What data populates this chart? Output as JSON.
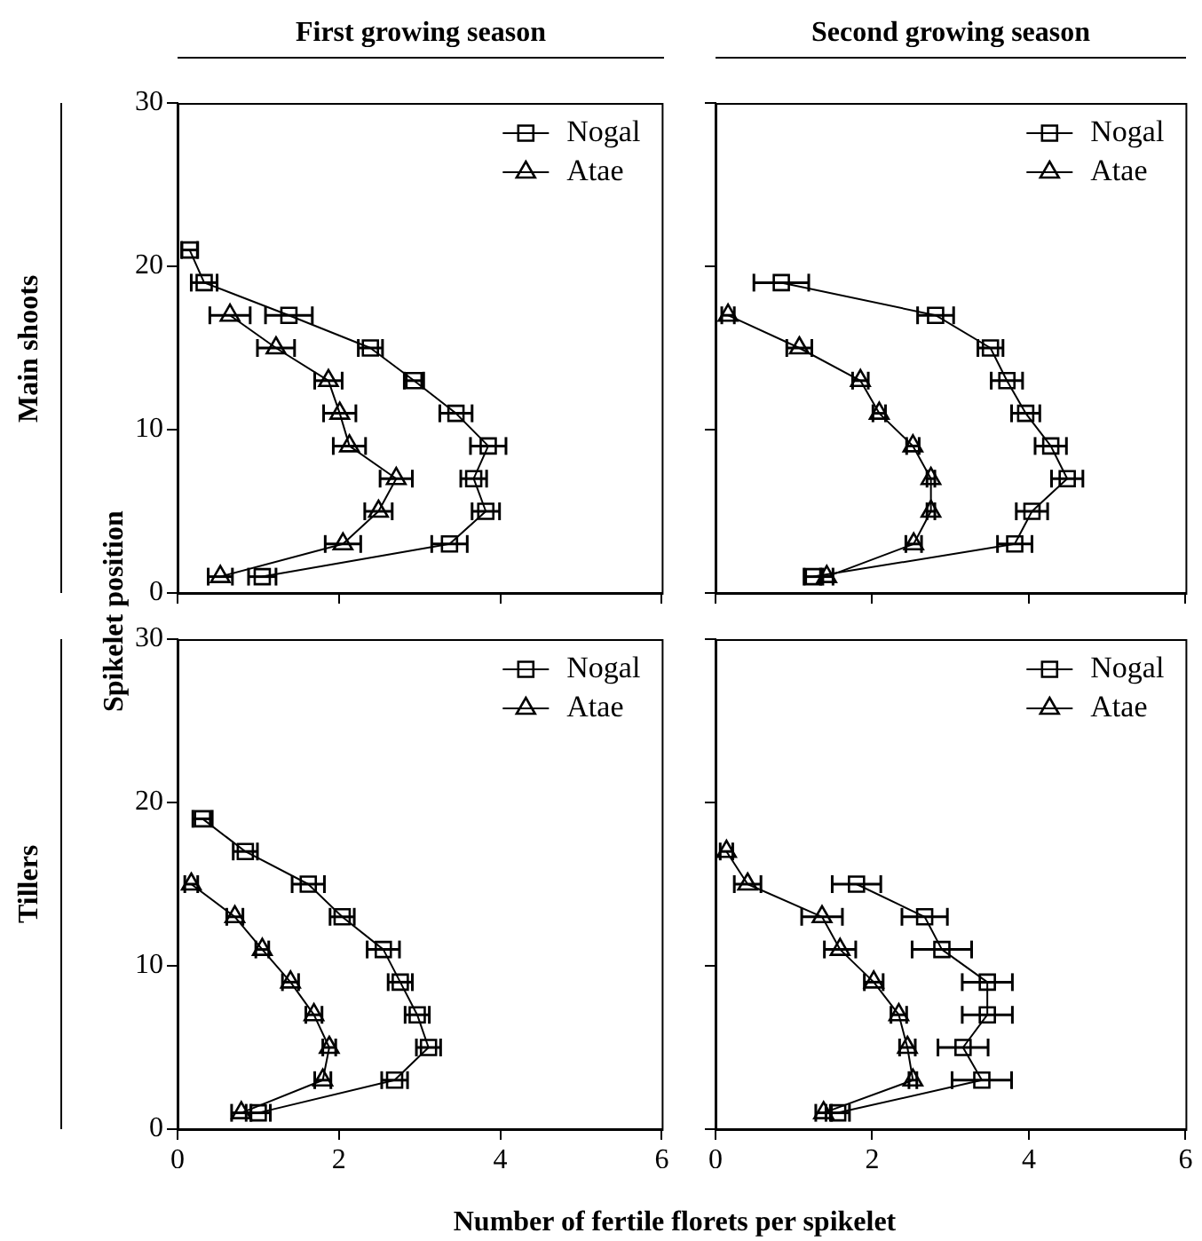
{
  "chart_data": [
    {
      "type": "line",
      "title": "First growing season",
      "ylabel": "Spikelet position",
      "annotations": [
        "Main shoots"
      ],
      "xlim": [
        0,
        6
      ],
      "xticks": [
        0,
        2,
        4,
        6
      ],
      "ylim": [
        0,
        30
      ],
      "yticks": [
        0,
        10,
        20,
        30
      ],
      "tick_labels": "y",
      "grid": false,
      "legend": "top right",
      "series": [
        {
          "name": "Nogal",
          "color": "#000000",
          "marker": "square",
          "x": [
            0.15,
            0.33,
            1.38,
            2.39,
            2.93,
            3.45,
            3.85,
            3.67,
            3.82,
            3.37,
            1.05
          ],
          "values": [
            21,
            19,
            17,
            15,
            13,
            11,
            9,
            7,
            5,
            3,
            1
          ],
          "xerrors": [
            0.1,
            0.16,
            0.29,
            0.15,
            0.12,
            0.2,
            0.22,
            0.16,
            0.17,
            0.22,
            0.17
          ]
        },
        {
          "name": "Atae",
          "color": "#000000",
          "marker": "triangle",
          "x": [
            0.65,
            1.22,
            1.87,
            2.01,
            2.13,
            2.71,
            2.49,
            2.05,
            0.53
          ],
          "values": [
            17,
            15,
            13,
            11,
            9,
            7,
            5,
            3,
            1
          ],
          "xerrors": [
            0.25,
            0.23,
            0.17,
            0.2,
            0.2,
            0.2,
            0.17,
            0.22,
            0.15
          ]
        }
      ]
    },
    {
      "type": "line",
      "title": "Second growing season",
      "xlim": [
        0,
        6
      ],
      "xticks": [
        0,
        2,
        4,
        6
      ],
      "ylim": [
        0,
        30
      ],
      "yticks": [
        0,
        10,
        20,
        30
      ],
      "tick_labels": false,
      "grid": false,
      "legend": "top right",
      "series": [
        {
          "name": "Nogal",
          "color": "#000000",
          "marker": "square",
          "x": [
            0.84,
            2.81,
            3.51,
            3.72,
            3.96,
            4.28,
            4.49,
            4.04,
            3.82,
            1.25
          ],
          "values": [
            19,
            17,
            15,
            13,
            11,
            9,
            7,
            5,
            3,
            1
          ],
          "xerrors": [
            0.35,
            0.23,
            0.16,
            0.2,
            0.18,
            0.2,
            0.2,
            0.2,
            0.22,
            0.12
          ]
        },
        {
          "name": "Atae",
          "color": "#000000",
          "marker": "triangle",
          "x": [
            0.16,
            1.07,
            1.85,
            2.09,
            2.52,
            2.75,
            2.75,
            2.53,
            1.42
          ],
          "values": [
            17,
            15,
            13,
            11,
            9,
            7,
            5,
            3,
            1
          ],
          "xerrors": [
            0.08,
            0.16,
            0.1,
            0.08,
            0.08,
            0.05,
            0.05,
            0.1,
            0.08
          ]
        }
      ]
    },
    {
      "type": "line",
      "xlabel": "Number of fertile florets per spikelet",
      "annotations": [
        "Tillers"
      ],
      "xlim": [
        0,
        6
      ],
      "xticks": [
        0,
        2,
        4,
        6
      ],
      "ylim": [
        0,
        30
      ],
      "yticks": [
        0,
        10,
        20,
        30
      ],
      "grid": false,
      "legend": "top right",
      "series": [
        {
          "name": "Nogal",
          "color": "#000000",
          "marker": "square",
          "x": [
            0.31,
            0.84,
            1.62,
            2.04,
            2.55,
            2.76,
            2.97,
            3.11,
            2.69,
            1.0
          ],
          "values": [
            19,
            17,
            15,
            13,
            11,
            9,
            7,
            5,
            3,
            1
          ],
          "xerrors": [
            0.12,
            0.15,
            0.2,
            0.15,
            0.2,
            0.15,
            0.15,
            0.15,
            0.16,
            0.15
          ]
        },
        {
          "name": "Atae",
          "color": "#000000",
          "marker": "triangle",
          "x": [
            0.17,
            0.71,
            1.05,
            1.4,
            1.69,
            1.88,
            1.8,
            0.79
          ],
          "values": [
            15,
            13,
            11,
            9,
            7,
            5,
            3,
            1
          ],
          "xerrors": [
            0.08,
            0.1,
            0.08,
            0.1,
            0.1,
            0.08,
            0.1,
            0.12
          ]
        }
      ]
    },
    {
      "type": "line",
      "xlim": [
        0,
        6
      ],
      "xticks": [
        0,
        2,
        4,
        6
      ],
      "ylim": [
        0,
        30
      ],
      "yticks": [
        0,
        10,
        20,
        30
      ],
      "tick_labels": "x",
      "grid": false,
      "legend": "top right",
      "series": [
        {
          "name": "Nogal",
          "color": "#000000",
          "marker": "square",
          "x": [
            1.8,
            2.67,
            2.89,
            3.47,
            3.47,
            3.16,
            3.4,
            1.56
          ],
          "values": [
            15,
            13,
            11,
            9,
            7,
            5,
            3,
            1
          ],
          "xerrors": [
            0.31,
            0.29,
            0.38,
            0.32,
            0.32,
            0.32,
            0.38,
            0.15
          ]
        },
        {
          "name": "Atae",
          "color": "#000000",
          "marker": "triangle",
          "x": [
            0.14,
            0.41,
            1.36,
            1.59,
            2.02,
            2.34,
            2.45,
            2.52,
            1.38
          ],
          "values": [
            17,
            15,
            13,
            11,
            9,
            7,
            5,
            3,
            1
          ],
          "xerrors": [
            0.08,
            0.17,
            0.26,
            0.2,
            0.12,
            0.1,
            0.1,
            0.05,
            0.1
          ]
        }
      ]
    }
  ]
}
